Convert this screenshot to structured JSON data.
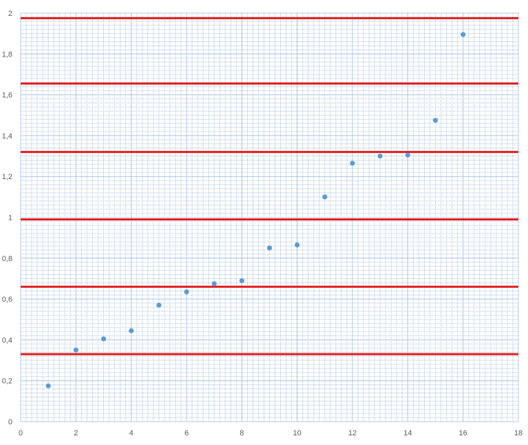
{
  "chart_data": {
    "type": "scatter",
    "title": "",
    "xlabel": "",
    "ylabel": "",
    "xlim": [
      0,
      18
    ],
    "ylim": [
      0,
      2
    ],
    "x_ticks": [
      0,
      2,
      4,
      6,
      8,
      10,
      12,
      14,
      16,
      18
    ],
    "y_ticks": [
      0,
      0.2,
      0.4,
      0.6,
      0.8,
      1,
      1.2,
      1.4,
      1.6,
      1.8,
      2
    ],
    "x_tick_labels": [
      "0",
      "2",
      "4",
      "6",
      "8",
      "10",
      "12",
      "14",
      "16",
      "18"
    ],
    "y_tick_labels": [
      "0",
      "0,2",
      "0,4",
      "0,6",
      "0,8",
      "1",
      "1,2",
      "1,4",
      "1,6",
      "1,8",
      "2"
    ],
    "grid": true,
    "legend": "none",
    "series": [
      {
        "x": [
          1,
          2,
          3,
          4,
          5,
          6,
          7,
          8,
          9,
          10,
          11,
          12,
          13,
          14,
          15,
          16
        ],
        "y": [
          0.175,
          0.35,
          0.405,
          0.445,
          0.57,
          0.635,
          0.675,
          0.69,
          0.85,
          0.865,
          1.1,
          1.265,
          1.3,
          1.305,
          1.475,
          1.895
        ],
        "color": "#5b9bd5"
      }
    ],
    "reference_lines": {
      "color": "#e31a1c",
      "y": [
        0.33,
        0.66,
        0.99,
        1.32,
        1.655,
        1.975
      ]
    }
  }
}
